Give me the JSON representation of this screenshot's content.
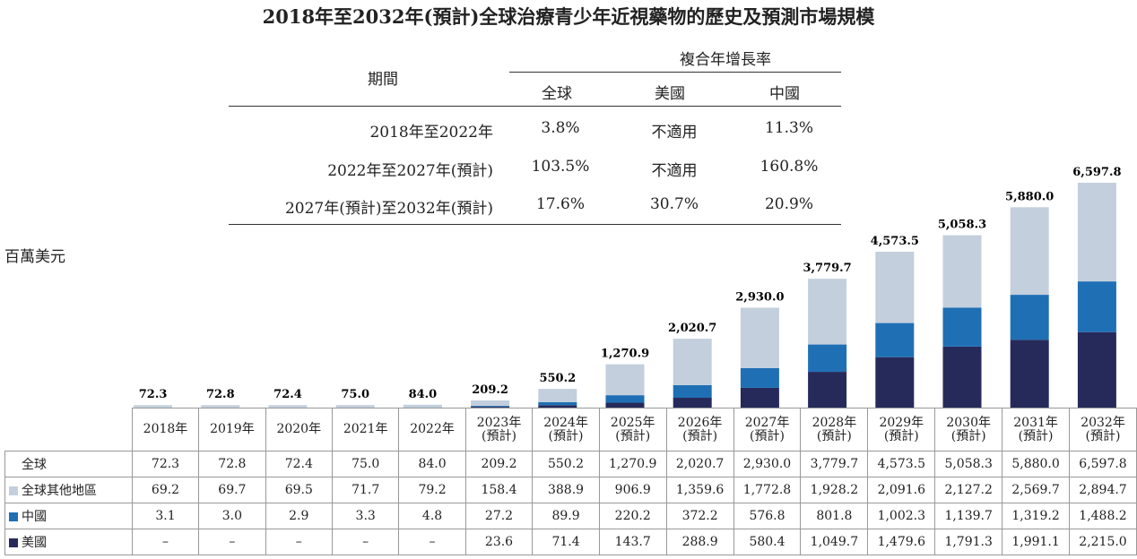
{
  "title": "2018年至2032年(預計)全球治療青少年近視藥物的歷史及預測市場規模",
  "cagr_table": {
    "period_header": "期間",
    "group_header": "複合年增長率",
    "columns": [
      "全球",
      "美國",
      "中國"
    ],
    "rows": [
      {
        "period": "2018年至2022年",
        "values": [
          "3.8%",
          "不適用",
          "11.3%"
        ]
      },
      {
        "period": "2022年至2027年(預計)",
        "values": [
          "103.5%",
          "不適用",
          "160.8%"
        ]
      },
      {
        "period": "2027年(預計)至2032年(預計)",
        "values": [
          "17.6%",
          "30.7%",
          "20.9%"
        ]
      }
    ]
  },
  "chart_data": {
    "type": "bar",
    "stacked": true,
    "ylabel": "百萬美元",
    "categories": [
      "2018年",
      "2019年",
      "2020年",
      "2021年",
      "2022年",
      "2023年\n(預計)",
      "2024年\n(預計)",
      "2025年\n(預計)",
      "2026年\n(預計)",
      "2027年\n(預計)",
      "2028年\n(預計)",
      "2029年\n(預計)",
      "2030年\n(預計)",
      "2031年\n(預計)",
      "2032年\n(預計)"
    ],
    "totals_label": "全球",
    "totals": [
      "72.3",
      "72.8",
      "72.4",
      "75.0",
      "84.0",
      "209.2",
      "550.2",
      "1,270.9",
      "2,020.7",
      "2,930.0",
      "3,779.7",
      "4,573.5",
      "5,058.3",
      "5,880.0",
      "6,597.8"
    ],
    "series": [
      {
        "name": "美國",
        "color": "#262a5a",
        "values": [
          "–",
          "–",
          "–",
          "–",
          "–",
          "23.6",
          "71.4",
          "143.7",
          "288.9",
          "580.4",
          "1,049.7",
          "1,479.6",
          "1,791.3",
          "1,991.1",
          "2,215.0"
        ]
      },
      {
        "name": "中國",
        "color": "#1f6fb5",
        "values": [
          "3.1",
          "3.0",
          "2.9",
          "3.3",
          "4.8",
          "27.2",
          "89.9",
          "220.2",
          "372.2",
          "576.8",
          "801.8",
          "1,002.3",
          "1,139.7",
          "1,319.2",
          "1,488.2"
        ]
      },
      {
        "name": "全球其他地區",
        "color": "#c3cfdc",
        "values": [
          "69.2",
          "69.7",
          "69.5",
          "71.7",
          "79.2",
          "158.4",
          "388.9",
          "906.9",
          "1,359.6",
          "1,772.8",
          "1,928.2",
          "2,091.6",
          "2,127.2",
          "2,569.7",
          "2,894.7"
        ]
      }
    ],
    "ylim": [
      0,
      6597.8
    ]
  }
}
